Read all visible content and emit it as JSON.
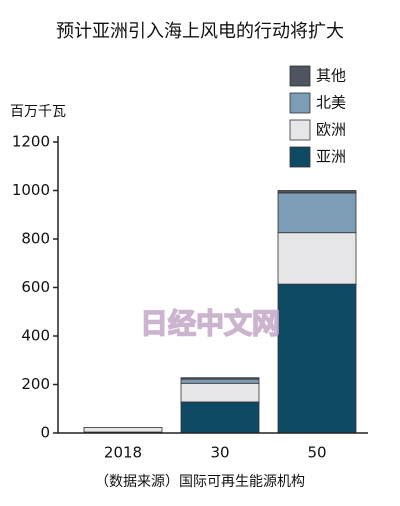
{
  "chart_data": {
    "type": "stacked_bar",
    "title": "预计亚洲引入海上风电的行动将扩大",
    "y_label": "百万千瓦",
    "categories": [
      "2018",
      "30",
      "50"
    ],
    "series": [
      {
        "name": "亚洲",
        "color": "#0e4a64",
        "values": [
          4,
          128,
          614
        ]
      },
      {
        "name": "欧洲",
        "color": "#e6e6e8",
        "values": [
          19,
          77,
          212
        ]
      },
      {
        "name": "北美",
        "color": "#7d9cb6",
        "values": [
          0,
          17,
          164
        ]
      },
      {
        "name": "其他",
        "color": "#4e5560",
        "values": [
          0,
          6,
          10
        ]
      }
    ],
    "ylim": [
      0,
      1200
    ],
    "yticks": [
      0,
      200,
      400,
      600,
      800,
      1000,
      1200
    ],
    "legend": "upper right",
    "source": "（数据来源）国际可再生能源机构",
    "watermark": "日经中文网"
  }
}
